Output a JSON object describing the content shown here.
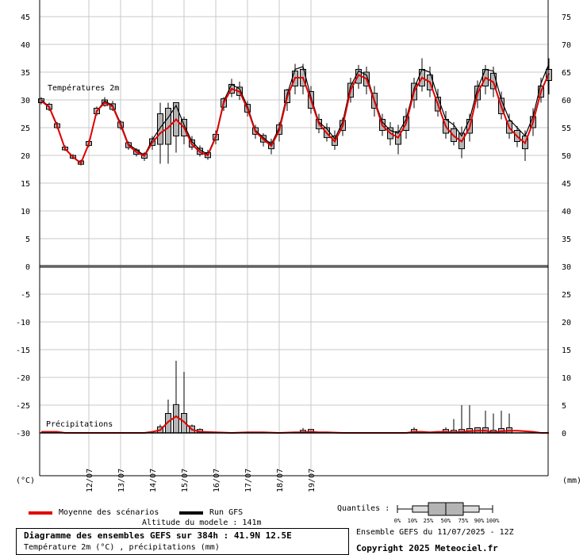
{
  "chart_data": {
    "type": "line",
    "title": "Diagramme des ensembles GEFS sur 384h : 41.9N 12.5E",
    "subtitle": "Température 2m (°C) , précipitations (mm)",
    "run_info": "Ensemble GEFS du 11/07/2025 - 12Z",
    "copyright": "Copyright 2025 Meteociel.fr",
    "altitude": "Altitude du modele : 141m",
    "panel_temp_label": "Températures 2m",
    "panel_precip_label": "Précipitations",
    "left_unit": "(°C)",
    "right_unit": "(mm)",
    "x_dates": [
      "12/07",
      "13/07",
      "14/07",
      "15/07",
      "16/07",
      "17/07",
      "18/07",
      "19/07"
    ],
    "left_ticks": [
      "45",
      "40",
      "35",
      "30",
      "25",
      "20",
      "15",
      "10",
      "5",
      "0",
      "-5",
      "-10",
      "-15",
      "-20",
      "-25",
      "-30"
    ],
    "right_ticks": [
      "75",
      "70",
      "65",
      "60",
      "55",
      "50",
      "45",
      "40",
      "35",
      "30",
      "25",
      "20",
      "15",
      "10",
      "5",
      "0"
    ],
    "legend": {
      "mean": {
        "label": "Moyenne des scénarios",
        "color": "#e00000"
      },
      "run": {
        "label": "Run GFS",
        "color": "#000000"
      },
      "quantiles_label": "Quantiles :",
      "quantile_marks": [
        "0%",
        "10%",
        "25%",
        "50%",
        "75%",
        "90%",
        "100%"
      ]
    },
    "temperature": {
      "ylim": [
        0,
        45
      ],
      "hours": [
        0,
        6,
        12,
        18,
        24,
        30,
        36,
        42,
        48,
        54,
        60,
        66,
        72,
        78,
        84,
        90,
        96,
        102,
        108,
        114,
        120,
        126,
        132,
        138,
        144,
        150,
        156,
        162,
        168,
        174,
        180,
        186,
        192,
        198,
        204,
        210,
        216,
        222,
        228,
        234,
        240,
        246,
        252,
        258,
        264,
        270,
        276,
        282,
        288,
        294,
        300,
        306,
        312,
        318,
        324,
        330,
        336,
        342,
        348,
        354,
        360,
        366,
        372,
        378,
        384
      ],
      "run": [
        30,
        28.8,
        25.5,
        21.2,
        19.8,
        18.6,
        22.2,
        28,
        29.8,
        29,
        25.8,
        22,
        21,
        20,
        22.8,
        25,
        26.8,
        29,
        25.5,
        22.5,
        21,
        20.2,
        23.5,
        29.8,
        32.8,
        32,
        28.8,
        24.5,
        23.2,
        22,
        25,
        31,
        35.5,
        36,
        30.5,
        26,
        24.8,
        23,
        26,
        32.5,
        35.2,
        34.5,
        30,
        26,
        24.5,
        24,
        26.5,
        32,
        35.5,
        35,
        30.5,
        26.5,
        25.5,
        23.5,
        26.5,
        32,
        35.5,
        35.2,
        30,
        26.5,
        25,
        23.5,
        27,
        33,
        36.5
      ],
      "mean": [
        29.8,
        28.7,
        25.3,
        21.2,
        19.7,
        18.6,
        22.1,
        28,
        29.5,
        28.8,
        25.5,
        21.8,
        20.6,
        19.9,
        22.3,
        24,
        25,
        26.5,
        25,
        22,
        20.6,
        20,
        23.3,
        29.5,
        32,
        31.5,
        28.4,
        24.3,
        22.9,
        21.7,
        24.5,
        30.5,
        34,
        34,
        30,
        25.7,
        24,
        22.5,
        25.3,
        31.8,
        34.5,
        33.8,
        29.8,
        25.4,
        24,
        23.2,
        25.8,
        31.5,
        34,
        33.2,
        29.2,
        25.2,
        23.5,
        22.5,
        25,
        31.2,
        34,
        33.2,
        28.8,
        25,
        23.4,
        22.2,
        26,
        31.5,
        34.8
      ],
      "q10": [
        29.5,
        28.3,
        25,
        21,
        19.5,
        18.4,
        21.8,
        27.5,
        29,
        28.3,
        25,
        21.4,
        20.2,
        19.5,
        21.8,
        22,
        22,
        23.5,
        23.5,
        21.5,
        20.2,
        19.6,
        22.8,
        28.7,
        31.2,
        30.8,
        27.8,
        23.8,
        22.4,
        21.2,
        23.8,
        29.5,
        32.5,
        32.5,
        28.5,
        24.8,
        23.2,
        21.8,
        24.5,
        30.5,
        33,
        32.5,
        28.5,
        24.5,
        23,
        22,
        24.5,
        30,
        32.5,
        31.8,
        28,
        24,
        22.5,
        21.2,
        24,
        30,
        32.5,
        32,
        27.5,
        24,
        22.5,
        21.2,
        25,
        30.5,
        33.5
      ],
      "q90": [
        30.2,
        29.2,
        25.7,
        21.5,
        20,
        19,
        22.5,
        28.5,
        30,
        29.3,
        26,
        22.3,
        21,
        20.3,
        23,
        27.5,
        28.5,
        29.5,
        26.5,
        22.8,
        21.3,
        20.5,
        23.8,
        30.2,
        32.8,
        32.3,
        29.2,
        25,
        23.6,
        22.4,
        25.5,
        31.8,
        35.2,
        35.5,
        31.5,
        26.5,
        25,
        23.5,
        26.3,
        33,
        35.5,
        35,
        31.2,
        26.5,
        25,
        24.3,
        27,
        33,
        35.5,
        34.5,
        30.5,
        26.5,
        24.8,
        24,
        26.5,
        32.5,
        35.5,
        34.8,
        30.3,
        26.2,
        24.5,
        23.5,
        27,
        32.5,
        35.5
      ],
      "min": [
        29.2,
        28,
        24.8,
        20.8,
        19.3,
        18.2,
        21.5,
        27.2,
        28.8,
        28,
        24.6,
        21,
        19.8,
        19,
        21,
        18.5,
        18.5,
        20.5,
        22,
        21,
        19.8,
        19.2,
        22,
        28,
        30.5,
        30,
        27,
        23,
        21.6,
        20.2,
        22.5,
        28,
        31,
        31,
        27.5,
        24,
        22.5,
        21,
        23.5,
        29.5,
        32,
        31,
        27,
        23.5,
        21.8,
        20.2,
        23,
        28.5,
        31.5,
        30.5,
        27,
        23,
        21.8,
        19.5,
        22.5,
        28.5,
        31,
        30.5,
        26.5,
        23,
        21.5,
        19,
        23.5,
        29.5,
        31
      ],
      "max": [
        30.5,
        29.5,
        26,
        21.8,
        20.2,
        19.2,
        22.8,
        28.8,
        30.5,
        29.8,
        26.3,
        22.5,
        21.3,
        20.6,
        23.5,
        29.5,
        29.5,
        29.5,
        27,
        23.5,
        21.8,
        21,
        24.5,
        30.5,
        33.8,
        33.3,
        29.8,
        25.5,
        24,
        23,
        26,
        32,
        36.5,
        36.5,
        32.5,
        27.5,
        25.8,
        24.5,
        26.8,
        34,
        36.3,
        36,
        32.5,
        27.5,
        26,
        25.5,
        28.5,
        34,
        37.5,
        36,
        32,
        28,
        26,
        25.2,
        27.5,
        33.5,
        36.3,
        36,
        31.5,
        27.5,
        25.3,
        24.5,
        28.5,
        34,
        37.5
      ]
    },
    "precipitation": {
      "ylim": [
        0,
        30
      ],
      "hours": [
        0,
        6,
        12,
        18,
        24,
        36,
        48,
        60,
        72,
        78,
        84,
        90,
        96,
        102,
        108,
        114,
        120,
        132,
        144,
        156,
        168,
        180,
        192,
        198,
        204,
        210,
        216,
        228,
        240,
        252,
        264,
        276,
        282,
        288,
        294,
        300,
        306,
        312,
        318,
        324,
        330,
        336,
        342,
        348,
        354,
        360,
        366,
        372,
        378,
        384
      ],
      "mean": [
        0.2,
        0.2,
        0.2,
        0,
        0,
        0,
        0,
        0,
        0,
        0,
        0.2,
        0.5,
        2,
        3,
        2,
        0.6,
        0.2,
        0.1,
        0,
        0.1,
        0.1,
        0,
        0.1,
        0.1,
        0.2,
        0.1,
        0.1,
        0,
        0,
        0,
        0,
        0,
        0.2,
        0.2,
        0.1,
        0.2,
        0.2,
        0.1,
        0.2,
        0.3,
        0.4,
        0.4,
        0.1,
        0.3,
        0.4,
        0.4,
        0.3,
        0.2,
        0,
        0
      ],
      "max": [
        0.3,
        0.3,
        0.2,
        0,
        0,
        0,
        0,
        0,
        0,
        0,
        0.4,
        1.5,
        6,
        13,
        11,
        1.5,
        0.8,
        0.3,
        0.2,
        0.3,
        0.3,
        0.2,
        0.4,
        0.9,
        0.7,
        0.5,
        0.3,
        0.2,
        0.2,
        0.2,
        0.3,
        0.4,
        1,
        0.5,
        0.3,
        0.5,
        1,
        2.5,
        5,
        5,
        1,
        4,
        3.5,
        4,
        3.5,
        0.5,
        0.3,
        0.2,
        0.1,
        0
      ]
    }
  }
}
